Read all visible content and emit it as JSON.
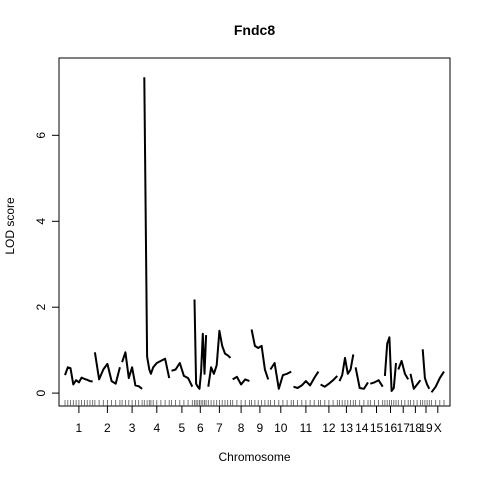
{
  "chart_data": {
    "type": "line",
    "title": "Fndc8",
    "xlabel": "Chromosome",
    "ylabel": "LOD score",
    "ylim": [
      -0.3,
      7.8
    ],
    "yticks": [
      0,
      2,
      4,
      6
    ],
    "grid": false,
    "legend": "none",
    "chromosomes": [
      {
        "label": "1",
        "x": [
          0,
          10,
          20,
          30,
          40,
          50,
          60,
          70,
          80,
          90,
          100
        ],
        "y": [
          0.42,
          0.6,
          0.58,
          0.2,
          0.3,
          0.25,
          0.36,
          0.33,
          0.31,
          0.28,
          0.27
        ]
      },
      {
        "label": "2",
        "x": [
          0,
          15,
          30,
          45,
          60,
          75,
          90
        ],
        "y": [
          0.95,
          0.32,
          0.55,
          0.68,
          0.28,
          0.22,
          0.6
        ]
      },
      {
        "label": "3",
        "x": [
          0,
          12,
          24,
          36,
          48,
          60,
          72
        ],
        "y": [
          0.72,
          0.95,
          0.35,
          0.6,
          0.18,
          0.16,
          0.1
        ]
      },
      {
        "label": "4",
        "x": [
          0,
          10,
          18,
          24,
          32,
          45,
          60,
          75,
          90
        ],
        "y": [
          7.35,
          0.85,
          0.55,
          0.45,
          0.6,
          0.7,
          0.75,
          0.8,
          0.35
        ]
      },
      {
        "label": "5",
        "x": [
          0,
          15,
          30,
          45,
          60,
          75
        ],
        "y": [
          0.52,
          0.55,
          0.7,
          0.4,
          0.35,
          0.15
        ]
      },
      {
        "label": "6",
        "x": [
          0,
          6,
          12,
          18,
          24,
          30,
          36,
          42
        ],
        "y": [
          2.18,
          0.22,
          0.15,
          0.1,
          0.5,
          1.38,
          0.45,
          1.35
        ]
      },
      {
        "label": "7",
        "x": [
          0,
          10,
          20,
          30,
          40,
          50,
          60,
          70,
          80
        ],
        "y": [
          0.15,
          0.6,
          0.45,
          0.65,
          1.45,
          1.1,
          0.92,
          0.88,
          0.82
        ]
      },
      {
        "label": "8",
        "x": [
          0,
          15,
          30,
          45,
          60
        ],
        "y": [
          0.32,
          0.38,
          0.2,
          0.32,
          0.28
        ]
      },
      {
        "label": "9",
        "x": [
          0,
          12,
          24,
          36,
          48,
          60
        ],
        "y": [
          1.48,
          1.1,
          1.05,
          1.1,
          0.55,
          0.32
        ]
      },
      {
        "label": "10",
        "x": [
          0,
          15,
          30,
          45,
          60,
          75
        ],
        "y": [
          0.55,
          0.7,
          0.1,
          0.42,
          0.45,
          0.5
        ]
      },
      {
        "label": "11",
        "x": [
          0,
          15,
          30,
          45,
          60,
          75,
          90
        ],
        "y": [
          0.15,
          0.12,
          0.18,
          0.28,
          0.18,
          0.35,
          0.5
        ]
      },
      {
        "label": "12",
        "x": [
          0,
          15,
          30,
          45,
          60
        ],
        "y": [
          0.2,
          0.15,
          0.22,
          0.3,
          0.4
        ]
      },
      {
        "label": "13",
        "x": [
          0,
          10,
          20,
          30,
          40,
          50
        ],
        "y": [
          0.28,
          0.42,
          0.82,
          0.45,
          0.55,
          0.9
        ]
      },
      {
        "label": "14",
        "x": [
          0,
          15,
          30,
          45
        ],
        "y": [
          0.6,
          0.12,
          0.1,
          0.25
        ]
      },
      {
        "label": "15",
        "x": [
          0,
          15,
          30,
          45
        ],
        "y": [
          0.22,
          0.25,
          0.3,
          0.15
        ]
      },
      {
        "label": "16",
        "x": [
          0,
          8,
          16,
          24,
          32,
          40
        ],
        "y": [
          0.4,
          1.15,
          1.3,
          0.05,
          0.12,
          0.7
        ]
      },
      {
        "label": "17",
        "x": [
          0,
          12,
          24,
          36
        ],
        "y": [
          0.55,
          0.75,
          0.45,
          0.32
        ]
      },
      {
        "label": "18",
        "x": [
          0,
          12,
          24,
          36
        ],
        "y": [
          0.45,
          0.1,
          0.2,
          0.3
        ]
      },
      {
        "label": "19",
        "x": [
          0,
          8,
          16,
          24
        ],
        "y": [
          1.02,
          0.35,
          0.2,
          0.1
        ]
      },
      {
        "label": "X",
        "x": [
          0,
          15,
          30,
          45
        ],
        "y": [
          0.02,
          0.15,
          0.35,
          0.5
        ]
      }
    ],
    "chrom_lengths": [
      100,
      90,
      72,
      90,
      75,
      42,
      80,
      60,
      60,
      75,
      90,
      60,
      50,
      45,
      45,
      40,
      36,
      36,
      24,
      45
    ],
    "gap": 8,
    "rug": true
  }
}
